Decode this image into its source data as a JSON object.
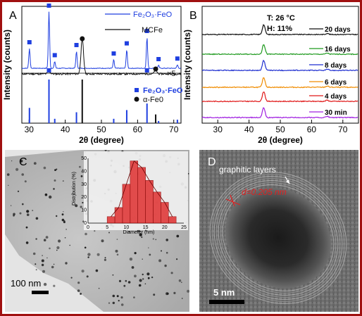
{
  "panels": {
    "A": {
      "letter": "A",
      "ylabel": "Intensity (counts)",
      "xlabel": "2θ (degree)",
      "legend_top": [
        {
          "name": "Fe₂O₃·FeO",
          "color": "#1f3fe0"
        },
        {
          "name": "MCFe",
          "color": "#111111"
        }
      ],
      "legend_bottom": [
        {
          "name": "Fe₂O₃·FeO",
          "color": "#1f3fe0",
          "marker": "square"
        },
        {
          "name": "α-Fe0",
          "color": "#111111",
          "marker": "circle"
        }
      ],
      "scale_note": "×5"
    },
    "B": {
      "letter": "B",
      "ylabel": "Intensity (counts)",
      "xlabel": "2θ (degree)",
      "conditions": [
        "T: 26 °C",
        "H: 11%"
      ]
    },
    "C": {
      "letter": "C",
      "scale_bar": "100 nm",
      "inset": {
        "ylabel": "Distribution (%)",
        "xlabel": "Diameter (nm)"
      }
    },
    "D": {
      "letter": "D",
      "annotation": "graphitic layers",
      "spacing": "d=0.205 nm",
      "scale_bar": "5 nm"
    }
  },
  "chart_data": [
    {
      "type": "line",
      "panel": "A",
      "xlabel": "2θ (degree)",
      "ylabel": "Intensity (counts)",
      "xlim": [
        28,
        72
      ],
      "xticks": [
        30,
        40,
        50,
        60,
        70
      ],
      "series": [
        {
          "name": "Fe₂O₃·FeO",
          "color": "#1f3fe0",
          "peaks": [
            [
              30.1,
              0.35
            ],
            [
              35.5,
              1.0
            ],
            [
              37.1,
              0.12
            ],
            [
              43.1,
              0.3
            ],
            [
              53.4,
              0.15
            ],
            [
              57.0,
              0.33
            ],
            [
              62.6,
              0.55
            ],
            [
              65.8,
              0.05
            ],
            [
              71.0,
              0.06
            ]
          ]
        },
        {
          "name": "MCFe",
          "color": "#111111",
          "peaks": [
            [
              35.5,
              0.04
            ],
            [
              44.7,
              0.55
            ],
            [
              65.0,
              0.06
            ]
          ]
        }
      ],
      "reference_sticks": [
        {
          "name": "Fe₂O₃·FeO",
          "color": "#1f3fe0",
          "x": [
            30.1,
            35.5,
            37.1,
            43.1,
            53.4,
            57.0,
            62.6,
            65.8,
            71.0
          ],
          "rel_intensity": [
            0.35,
            1.0,
            0.1,
            0.25,
            0.1,
            0.3,
            0.45,
            0.05,
            0.08
          ]
        },
        {
          "name": "α-Fe0",
          "color": "#111111",
          "x": [
            44.7,
            65.0
          ],
          "rel_intensity": [
            1.0,
            0.2
          ]
        }
      ]
    },
    {
      "type": "line",
      "panel": "B",
      "xlabel": "2θ (degree)",
      "ylabel": "Intensity (counts)",
      "xlim": [
        25,
        75
      ],
      "xticks": [
        30,
        40,
        50,
        60,
        70
      ],
      "peaks": [
        [
          44.7,
          1.0
        ],
        [
          65.0,
          0.12
        ]
      ],
      "series": [
        {
          "name": "20 days",
          "color": "#111111"
        },
        {
          "name": "16 days",
          "color": "#1f9a1f"
        },
        {
          "name": "8 days",
          "color": "#1f2fd0"
        },
        {
          "name": "6 days",
          "color": "#f08c00"
        },
        {
          "name": "4 days",
          "color": "#e01818"
        },
        {
          "name": "30 min",
          "color": "#a020e0"
        }
      ]
    },
    {
      "type": "bar",
      "panel": "C-inset",
      "xlabel": "Diameter (nm)",
      "ylabel": "Distribution (%)",
      "xlim": [
        0,
        25
      ],
      "ylim": [
        0,
        50
      ],
      "xticks": [
        0,
        5,
        10,
        15,
        20,
        25
      ],
      "yticks": [
        0,
        10,
        20,
        30,
        40,
        50
      ],
      "bin_width": 2,
      "bin_starts": [
        5,
        7,
        9,
        11,
        13,
        15,
        17,
        19,
        21
      ],
      "values": [
        5,
        12,
        30,
        48,
        43,
        33,
        24,
        16,
        5
      ],
      "bar_color": "#e03030"
    }
  ],
  "colors": {
    "frame": "#a01010",
    "axis": "#000000"
  }
}
